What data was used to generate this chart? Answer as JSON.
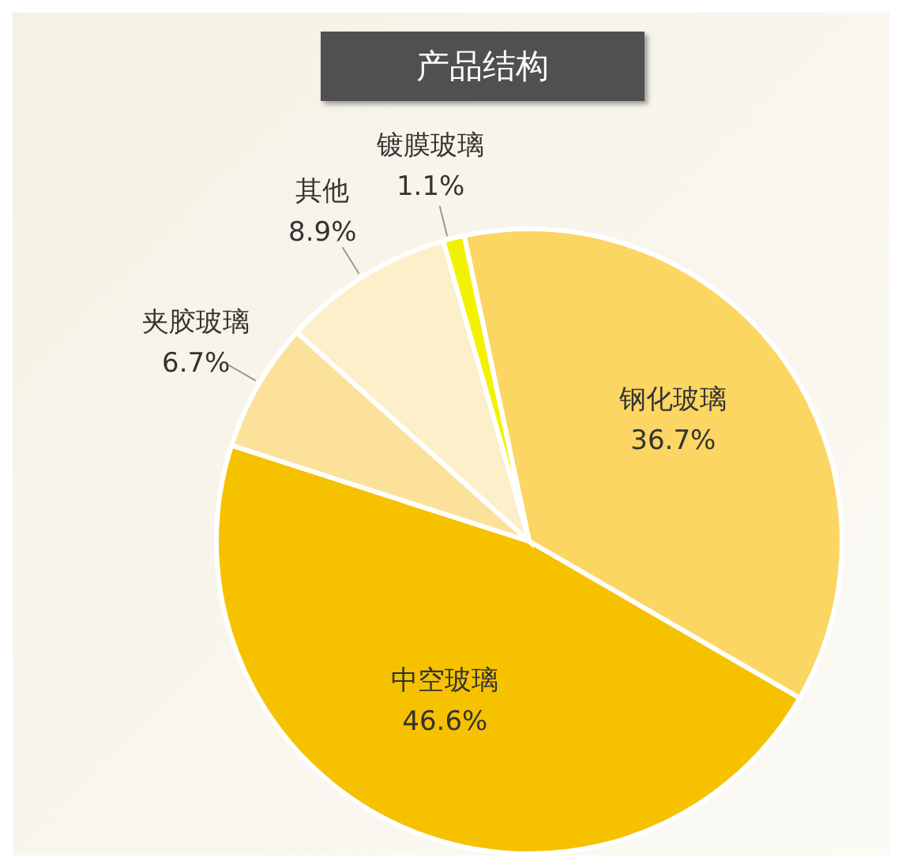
{
  "chart_data": {
    "type": "pie",
    "title": "产品结构",
    "categories": [
      "钢化玻璃",
      "中空玻璃",
      "夹胶玻璃",
      "其他",
      "镀膜玻璃"
    ],
    "values": [
      36.7,
      46.6,
      6.7,
      8.9,
      1.1
    ],
    "value_labels": [
      "36.7%",
      "46.6%",
      "6.7%",
      "8.9%",
      "1.1%"
    ],
    "colors": [
      "#fcd662",
      "#f6c200",
      "#fbe19a",
      "#fdefc9",
      "#f2f200"
    ],
    "legend": false
  }
}
